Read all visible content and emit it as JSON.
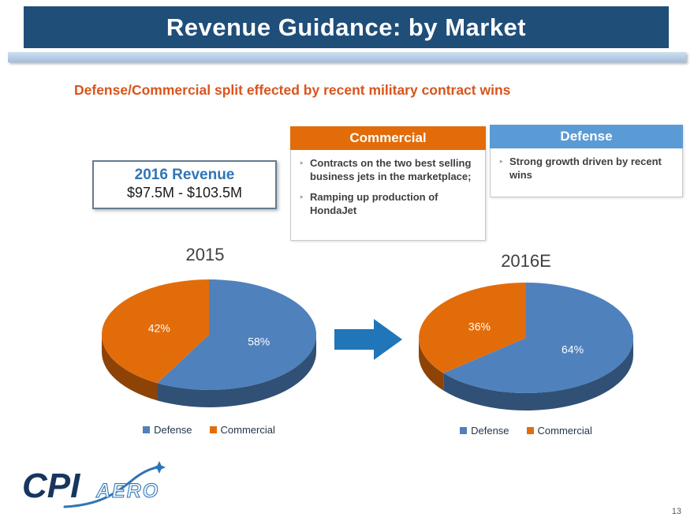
{
  "slide": {
    "title": "Revenue Guidance: by Market",
    "subtitle": "Defense/Commercial split effected by recent military contract wins",
    "page_number": "13"
  },
  "colors": {
    "header_bg": "#1F4E79",
    "subtitle": "#D9541C",
    "revenue_title": "#2E75B6",
    "commercial_header": "#E36C0A",
    "defense_header": "#5B9BD5",
    "arrow": "#2076B8"
  },
  "revenue_box": {
    "title": "2016 Revenue",
    "value": "$97.5M - $103.5M"
  },
  "commercial_box": {
    "header": "Commercial",
    "bullets": [
      "Contracts on the two best selling business jets in the marketplace;",
      "Ramping up production of HondaJet"
    ]
  },
  "defense_box": {
    "header": "Defense",
    "bullets": [
      "Strong growth driven by recent wins"
    ]
  },
  "logo": {
    "cpi": "CPI",
    "aero": "AERO"
  },
  "chart_data": [
    {
      "type": "pie",
      "title": "2015",
      "labels": [
        "Defense",
        "Commercial"
      ],
      "values": [
        58,
        42
      ],
      "unit": "%",
      "colors": [
        "#4F81BD",
        "#E36C0A"
      ],
      "style": "3d",
      "legend_position": "bottom"
    },
    {
      "type": "pie",
      "title": "2016E",
      "labels": [
        "Defense",
        "Commercial"
      ],
      "values": [
        64,
        36
      ],
      "unit": "%",
      "colors": [
        "#4F81BD",
        "#E36C0A"
      ],
      "style": "3d",
      "legend_position": "bottom"
    }
  ]
}
